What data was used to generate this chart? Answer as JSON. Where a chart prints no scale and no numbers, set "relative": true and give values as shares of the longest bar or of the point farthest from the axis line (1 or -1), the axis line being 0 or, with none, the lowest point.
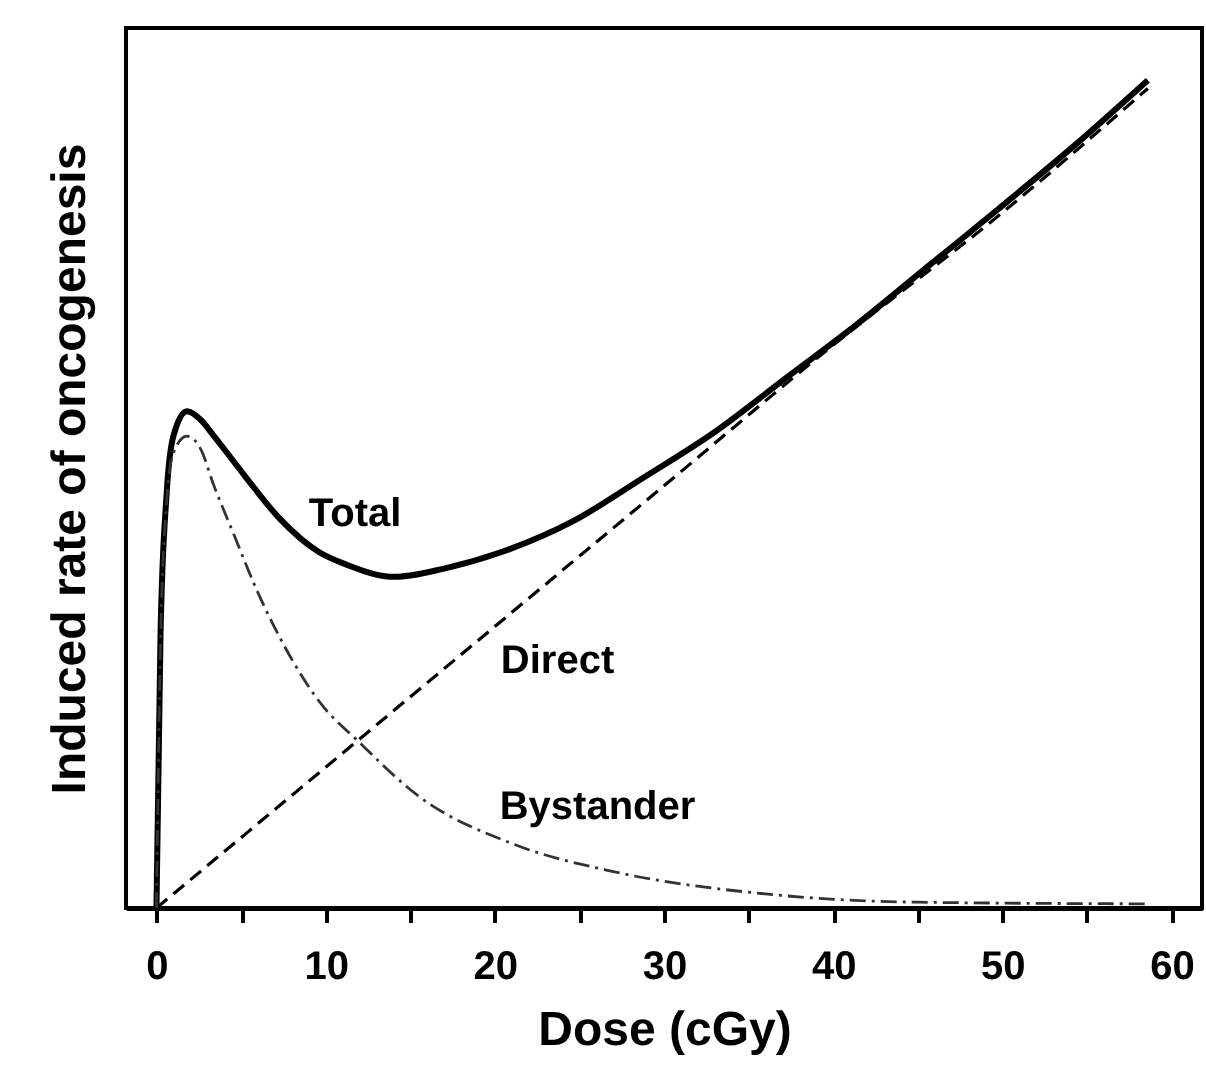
{
  "chart_data": {
    "type": "line",
    "xlabel": "Dose (cGy)",
    "ylabel": "Induced rate of oncogenesis",
    "relative": true,
    "xlim": [
      -1.8,
      61.8
    ],
    "xticks": [
      0,
      {
        "value": 5,
        "label": null
      },
      10,
      {
        "value": 15,
        "label": null
      },
      20,
      {
        "value": 25,
        "label": null
      },
      30,
      {
        "value": 35,
        "label": null
      },
      40,
      {
        "value": 45,
        "label": null
      },
      50,
      {
        "value": 55,
        "label": null
      },
      60
    ],
    "grid": false,
    "legend": false,
    "marker": "none",
    "series": [
      {
        "name": "Total",
        "color": "#000000",
        "line_style": "solid",
        "x": [
          0,
          0.24,
          0.6,
          1.0,
          1.8,
          2.6,
          3.4,
          5.3,
          7.3,
          9.6,
          11.2,
          14.1,
          17,
          20.4,
          24.6,
          28.8,
          33,
          37.2,
          41.4,
          45.6,
          49.8,
          54.2,
          58.6
        ],
        "values": [
          0,
          0.33,
          0.5,
          0.57,
          0.6,
          0.59,
          0.57,
          0.52,
          0.47,
          0.43,
          0.415,
          0.4,
          0.41,
          0.43,
          0.467,
          0.52,
          0.575,
          0.64,
          0.705,
          0.775,
          0.845,
          0.92,
          1.0
        ]
      },
      {
        "name": "Direct",
        "color": "#000000",
        "line_style": "dashed",
        "x": [
          0,
          10,
          20,
          30,
          40,
          50,
          58.6
        ],
        "values": [
          0,
          0.17,
          0.34,
          0.51,
          0.68,
          0.84,
          0.99
        ]
      },
      {
        "name": "Bystander",
        "color": "#333333",
        "line_style": "dashdot",
        "x": [
          0,
          0.24,
          0.6,
          1.0,
          1.8,
          2.6,
          3.4,
          4.6,
          5.8,
          7.6,
          9.6,
          12,
          15.5,
          21,
          27,
          36,
          45,
          58.6
        ],
        "values": [
          0,
          0.32,
          0.49,
          0.55,
          0.57,
          0.555,
          0.51,
          0.45,
          0.39,
          0.315,
          0.25,
          0.2,
          0.135,
          0.078,
          0.044,
          0.017,
          0.007,
          0.005
        ]
      }
    ]
  }
}
